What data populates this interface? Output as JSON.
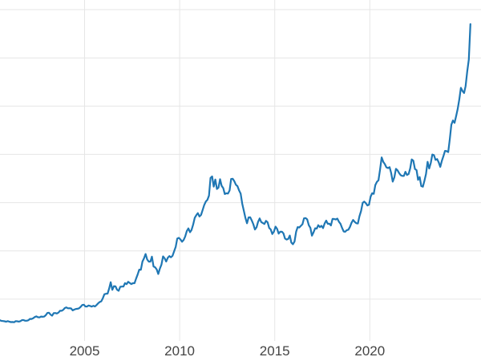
{
  "page": {
    "background": "#ffffff"
  },
  "chart_data": {
    "type": "line",
    "title": "",
    "xlabel": "",
    "ylabel": "",
    "xticks": [
      2005,
      2010,
      2015,
      2020
    ],
    "ytick_gridlines": [
      500,
      1000,
      1500,
      2000,
      2500,
      3000,
      3500
    ],
    "xlim": [
      2000.55,
      2025.85
    ],
    "ylim": [
      0,
      3600
    ],
    "x_start": 2000.5417,
    "x_step": 0.0833333,
    "line_color": "#1f77b4",
    "grid_color": "#e6e6e6",
    "tick_label_color": "#444444",
    "background_color": "#ffffff",
    "values": [
      281,
      274,
      273,
      270,
      266,
      272,
      266,
      262,
      263,
      260,
      272,
      270,
      267,
      272,
      283,
      283,
      276,
      276,
      281,
      295,
      294,
      302,
      314,
      321,
      313,
      310,
      319,
      317,
      319,
      333,
      357,
      359,
      340,
      328,
      355,
      356,
      351,
      360,
      379,
      379,
      389,
      407,
      414,
      405,
      406,
      403,
      383,
      392,
      398,
      400,
      405,
      420,
      439,
      442,
      424,
      423,
      434,
      429,
      422,
      431,
      424,
      438,
      456,
      470,
      477,
      510,
      550,
      555,
      557,
      611,
      675,
      596,
      634,
      632,
      598,
      586,
      628,
      630,
      631,
      665,
      655,
      679,
      667,
      656,
      665,
      665,
      713,
      755,
      806,
      804,
      890,
      922,
      968,
      910,
      889,
      889,
      940,
      839,
      830,
      807,
      761,
      816,
      858,
      943,
      924,
      890,
      929,
      946,
      934,
      949,
      996,
      1043,
      1127,
      1135,
      1118,
      1095,
      1113,
      1149,
      1205,
      1233,
      1193,
      1216,
      1271,
      1342,
      1370,
      1391,
      1356,
      1373,
      1424,
      1474,
      1511,
      1529,
      1573,
      1756,
      1772,
      1666,
      1739,
      1641,
      1655,
      1743,
      1674,
      1650,
      1589,
      1597,
      1594,
      1626,
      1745,
      1747,
      1722,
      1685,
      1671,
      1627,
      1593,
      1487,
      1414,
      1343,
      1286,
      1347,
      1348,
      1316,
      1276,
      1221,
      1244,
      1300,
      1336,
      1299,
      1288,
      1279,
      1311,
      1296,
      1237,
      1222,
      1175,
      1200,
      1251,
      1227,
      1179,
      1198,
      1199,
      1181,
      1128,
      1117,
      1124,
      1159,
      1086,
      1068,
      1097,
      1199,
      1246,
      1242,
      1260,
      1276,
      1337,
      1340,
      1326,
      1266,
      1238,
      1157,
      1192,
      1234,
      1231,
      1266,
      1246,
      1260,
      1236,
      1283,
      1314,
      1280,
      1281,
      1264,
      1331,
      1330,
      1325,
      1334,
      1303,
      1281,
      1238,
      1201,
      1198,
      1215,
      1220,
      1250,
      1291,
      1320,
      1300,
      1286,
      1284,
      1359,
      1413,
      1497,
      1511,
      1495,
      1471,
      1479,
      1561,
      1597,
      1591,
      1683,
      1716,
      1732,
      1843,
      1969,
      1922,
      1900,
      1866,
      1858,
      1867,
      1808,
      1718,
      1762,
      1850,
      1835,
      1807,
      1784,
      1777,
      1777,
      1820,
      1787,
      1797,
      1856,
      1948,
      1934,
      1848,
      1837,
      1736,
      1765,
      1671,
      1665,
      1725,
      1797,
      1923,
      1854,
      1912,
      1999,
      1992,
      1943,
      1951,
      1918,
      1871,
      1934,
      1984,
      2036,
      2034,
      2024,
      2160,
      2307,
      2351,
      2327,
      2398,
      2470,
      2568,
      2690,
      2657,
      2636,
      2708,
      2858,
      2983,
      3350
    ]
  }
}
